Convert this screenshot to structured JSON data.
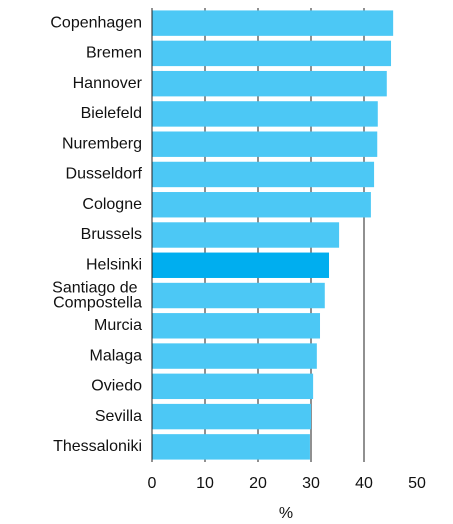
{
  "chart_data": {
    "type": "barh",
    "categories": [
      "Copenhagen",
      "Bremen",
      "Hannover",
      "Bielefeld",
      "Nuremberg",
      "Dusseldorf",
      "Cologne",
      "Brussels",
      "Helsinki",
      "Santiago de Compostella",
      "Murcia",
      "Malaga",
      "Oviedo",
      "Sevilla",
      "Thessaloniki"
    ],
    "values": [
      45.5,
      45.1,
      44.3,
      42.6,
      42.5,
      41.9,
      41.3,
      35.3,
      33.4,
      32.6,
      31.7,
      31.1,
      30.4,
      30.0,
      29.8
    ],
    "colors": [
      "#4cc8f5",
      "#4cc8f5",
      "#4cc8f5",
      "#4cc8f5",
      "#4cc8f5",
      "#4cc8f5",
      "#4cc8f5",
      "#4cc8f5",
      "#00aeef",
      "#4cc8f5",
      "#4cc8f5",
      "#4cc8f5",
      "#4cc8f5",
      "#4cc8f5",
      "#4cc8f5"
    ],
    "xlim": [
      0,
      50
    ],
    "xticks": [
      0,
      10,
      20,
      30,
      40,
      50
    ],
    "xlabel": "%",
    "grid": true
  }
}
